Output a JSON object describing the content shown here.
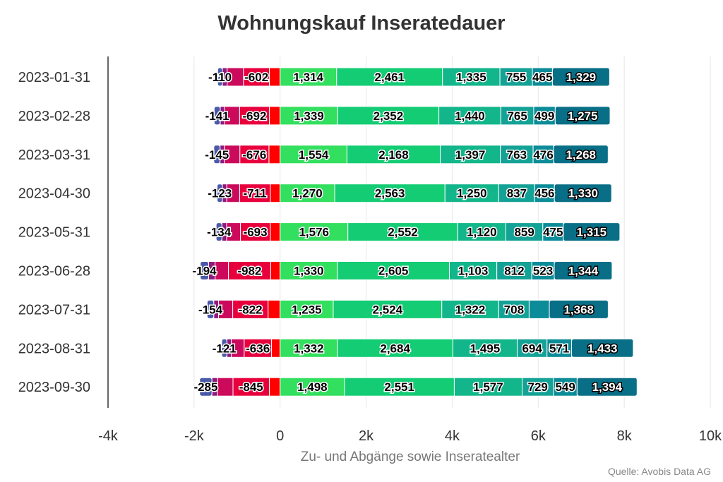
{
  "chart_data": {
    "type": "bar",
    "orientation": "horizontal",
    "stacked": true,
    "title": "Wohnungskauf Inseratedauer",
    "xlabel": "Zu- und Abgänge sowie Inseratealter",
    "ylabel": "",
    "source": "Quelle: Avobis Data AG",
    "xlim": [
      -4000,
      10000
    ],
    "xticks": [
      -4000,
      -2000,
      0,
      2000,
      4000,
      6000,
      8000,
      10000
    ],
    "xtick_labels": [
      "-4k",
      "-2k",
      "0",
      "2k",
      "4k",
      "6k",
      "8k",
      "10k"
    ],
    "grid": true,
    "categories": [
      "2023-01-31",
      "2023-02-28",
      "2023-03-31",
      "2023-04-30",
      "2023-05-31",
      "2023-06-28",
      "2023-07-31",
      "2023-08-31",
      "2023-09-30"
    ],
    "series": [
      {
        "name": "neg-1",
        "color": "#ff0000",
        "labeled": false,
        "values": [
          -250,
          -250,
          -260,
          -230,
          -230,
          -220,
          -280,
          -200,
          -250
        ]
      },
      {
        "name": "neg-2",
        "color": "#e8003d",
        "labeled": true,
        "values": [
          -602,
          -692,
          -676,
          -711,
          -693,
          -982,
          -822,
          -636,
          -845
        ]
      },
      {
        "name": "neg-3",
        "color": "#cc0a5c",
        "labeled": false,
        "values": [
          -380,
          -350,
          -360,
          -300,
          -320,
          -310,
          -330,
          -300,
          -360
        ]
      },
      {
        "name": "neg-4",
        "color": "#8e1a7e",
        "labeled": false,
        "values": [
          -110,
          -100,
          -100,
          -100,
          -110,
          -150,
          -110,
          -100,
          -130
        ]
      },
      {
        "name": "neg-5",
        "color": "#4a5aa8",
        "labeled": true,
        "values": [
          -110,
          -141,
          -145,
          -123,
          -134,
          -194,
          -154,
          -121,
          -285
        ]
      },
      {
        "name": "pos-1",
        "color": "#33df5e",
        "labeled": true,
        "values": [
          1314,
          1339,
          1554,
          1270,
          1576,
          1330,
          1235,
          1332,
          1498
        ]
      },
      {
        "name": "pos-2",
        "color": "#13cc74",
        "labeled": true,
        "values": [
          2461,
          2352,
          2168,
          2563,
          2552,
          2605,
          2524,
          2684,
          2551
        ]
      },
      {
        "name": "pos-3",
        "color": "#12b68a",
        "labeled": true,
        "values": [
          1335,
          1440,
          1397,
          1250,
          1120,
          1103,
          1322,
          1495,
          1577
        ]
      },
      {
        "name": "pos-4",
        "color": "#14a296",
        "labeled": true,
        "values": [
          755,
          765,
          763,
          837,
          859,
          812,
          708,
          694,
          729
        ]
      },
      {
        "name": "pos-5",
        "color": "#0c8c98",
        "labeled": true,
        "values": [
          465,
          499,
          476,
          456,
          475,
          523,
          470,
          571,
          549
        ]
      },
      {
        "name": "pos-6",
        "color": "#096f86",
        "labeled": true,
        "values": [
          1329,
          1275,
          1268,
          1330,
          1315,
          1344,
          1368,
          1433,
          1394
        ]
      }
    ],
    "hidden_labels": [
      [
        "pos-5",
        6
      ]
    ]
  }
}
